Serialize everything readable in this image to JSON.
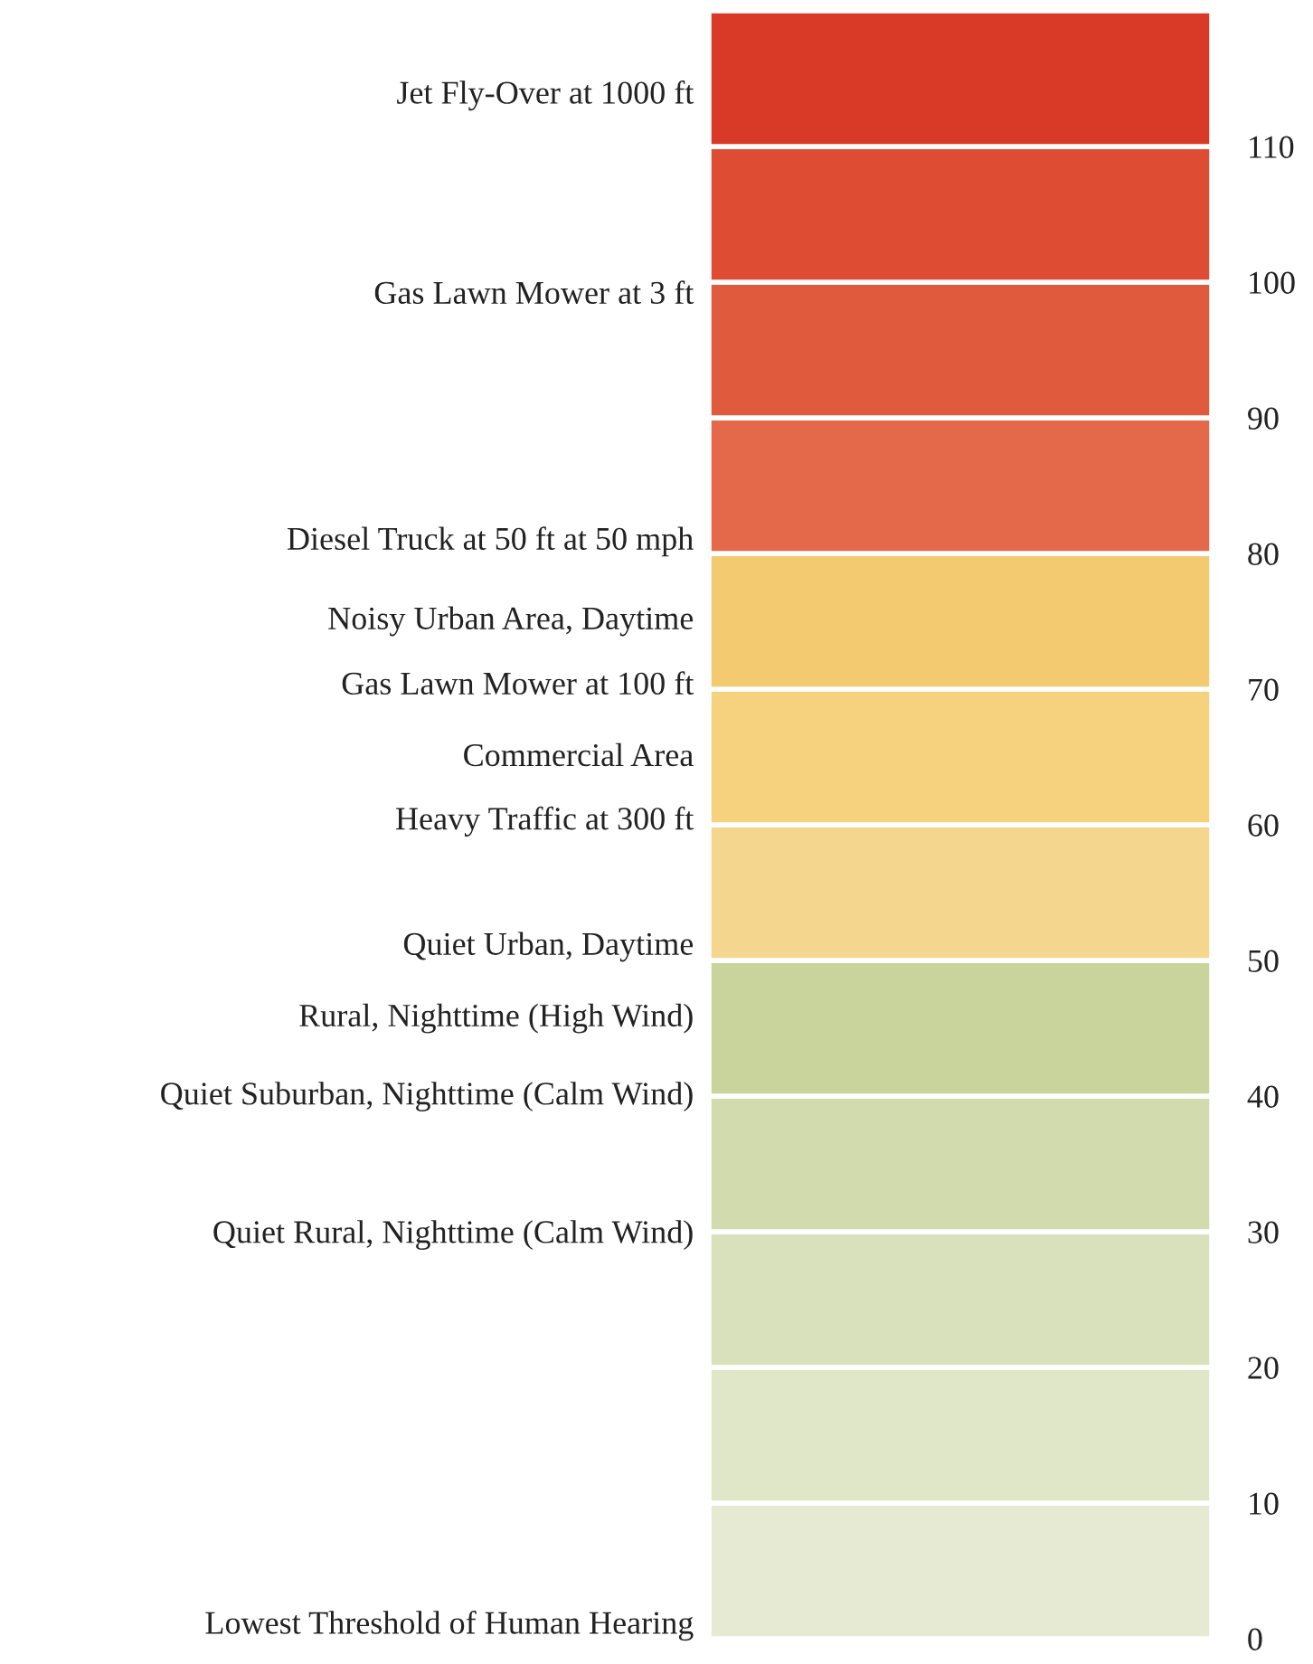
{
  "chart_data": {
    "type": "bar",
    "stacked": true,
    "categories": [
      null
    ],
    "series": [
      {
        "color": "#e6ead2",
        "values": [
          10
        ]
      },
      {
        "color": "#e0e6c8",
        "values": [
          10
        ]
      },
      {
        "color": "#d8e0bc",
        "values": [
          10
        ]
      },
      {
        "color": "#d1dbae",
        "values": [
          10
        ]
      },
      {
        "color": "#c8d49c",
        "values": [
          10
        ]
      },
      {
        "color": "#f5d68e",
        "values": [
          10
        ]
      },
      {
        "color": "#f6d27f",
        "values": [
          10
        ]
      },
      {
        "color": "#f3ca70",
        "values": [
          10
        ]
      },
      {
        "color": "#e4694a",
        "values": [
          10
        ]
      },
      {
        "color": "#e05a3d",
        "values": [
          10
        ]
      },
      {
        "color": "#dd4c33",
        "values": [
          10
        ]
      },
      {
        "color": "#d93a27",
        "values": [
          10
        ]
      }
    ],
    "ylim": [
      0,
      120
    ],
    "yticks": [
      0,
      10,
      20,
      30,
      40,
      50,
      60,
      70,
      80,
      90,
      100,
      110
    ],
    "annotations": [
      "Jet Fly-Over at 1000 ft",
      "Gas Lawn Mower at 3 ft",
      "Diesel Truck at 50 ft at 50 mph",
      "Noisy Urban Area, Daytime",
      "Gas Lawn Mower at 100 ft",
      "Commercial Area",
      "Heavy Traffic at 300 ft",
      "Quiet Urban, Daytime",
      "Rural, Nighttime (High Wind)",
      "Quiet Suburban, Nighttime (Calm Wind)",
      "Quiet Rural, Nighttime (Calm Wind)",
      "Lowest Threshold of Human Hearing"
    ]
  }
}
